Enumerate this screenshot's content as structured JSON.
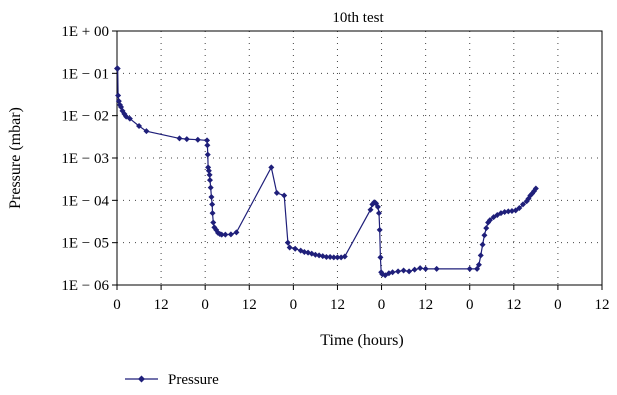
{
  "chart_data": {
    "type": "line",
    "title": "10th test",
    "xlabel": "Time (hours)",
    "ylabel": "Pressure (mbar)",
    "y_scale": "log",
    "ylim": [
      1e-06,
      1
    ],
    "xlim": [
      0,
      132
    ],
    "grid": "dotted",
    "legend_position": "bottom-left",
    "x_tick_values": [
      0,
      12,
      24,
      36,
      48,
      60,
      72,
      84,
      96,
      108,
      120,
      132
    ],
    "x_tick_labels": [
      "0",
      "12",
      "0",
      "12",
      "0",
      "12",
      "0",
      "12",
      "0",
      "12",
      "0",
      "12"
    ],
    "y_tick_values": [
      1,
      0.1,
      0.01,
      0.001,
      0.0001,
      1e-05,
      1e-06
    ],
    "y_tick_labels": [
      "1E + 00",
      "1E − 01",
      "1E − 02",
      "1E − 03",
      "1E − 04",
      "1E − 05",
      "1E − 06"
    ],
    "series": [
      {
        "name": "Pressure",
        "color": "#1f1f7a",
        "marker": "diamond",
        "points": [
          [
            0.0,
            0.13
          ],
          [
            0.2,
            0.13
          ],
          [
            0.3,
            0.03
          ],
          [
            0.5,
            0.022
          ],
          [
            0.8,
            0.018
          ],
          [
            1.1,
            0.016
          ],
          [
            1.5,
            0.013
          ],
          [
            2.0,
            0.011
          ],
          [
            2.5,
            0.0095
          ],
          [
            3.5,
            0.0085
          ],
          [
            6.0,
            0.0057
          ],
          [
            8.0,
            0.0043
          ],
          [
            17.0,
            0.0029
          ],
          [
            19.0,
            0.0028
          ],
          [
            22.0,
            0.0027
          ],
          [
            24.5,
            0.0026
          ],
          [
            24.6,
            0.002
          ],
          [
            24.7,
            0.0012
          ],
          [
            24.8,
            0.0006
          ],
          [
            25.0,
            0.0005
          ],
          [
            25.2,
            0.0004
          ],
          [
            25.3,
            0.0003
          ],
          [
            25.5,
            0.0002
          ],
          [
            25.7,
            0.00012
          ],
          [
            25.9,
            8e-05
          ],
          [
            26.0,
            5e-05
          ],
          [
            26.2,
            3e-05
          ],
          [
            26.5,
            2.3e-05
          ],
          [
            27.0,
            2e-05
          ],
          [
            27.5,
            1.7e-05
          ],
          [
            28.0,
            1.6e-05
          ],
          [
            28.5,
            1.55e-05
          ],
          [
            29.5,
            1.55e-05
          ],
          [
            31.0,
            1.57e-05
          ],
          [
            32.5,
            1.75e-05
          ],
          [
            42.0,
            0.0006
          ],
          [
            43.5,
            0.00015
          ],
          [
            45.5,
            0.00013
          ],
          [
            46.5,
            1e-05
          ],
          [
            47.0,
            7.7e-06
          ],
          [
            48.5,
            7.2e-06
          ],
          [
            50.0,
            6.5e-06
          ],
          [
            51.0,
            6e-06
          ],
          [
            52.0,
            5.8e-06
          ],
          [
            53.0,
            5.5e-06
          ],
          [
            54.0,
            5.2e-06
          ],
          [
            55.0,
            5e-06
          ],
          [
            56.0,
            4.8e-06
          ],
          [
            57.0,
            4.6e-06
          ],
          [
            58.0,
            4.6e-06
          ],
          [
            59.0,
            4.5e-06
          ],
          [
            60.0,
            4.5e-06
          ],
          [
            61.0,
            4.5e-06
          ],
          [
            62.0,
            4.7e-06
          ],
          [
            69.0,
            6e-05
          ],
          [
            69.5,
            8e-05
          ],
          [
            70.0,
            9e-05
          ],
          [
            70.5,
            8.5e-05
          ],
          [
            71.0,
            7e-05
          ],
          [
            71.3,
            5e-05
          ],
          [
            71.5,
            2e-05
          ],
          [
            71.7,
            4.5e-06
          ],
          [
            71.9,
            2e-06
          ],
          [
            72.2,
            1.8e-06
          ],
          [
            73.0,
            1.7e-06
          ],
          [
            74.0,
            1.9e-06
          ],
          [
            75.0,
            2e-06
          ],
          [
            76.5,
            2.1e-06
          ],
          [
            78.0,
            2.2e-06
          ],
          [
            79.5,
            2.1e-06
          ],
          [
            81.0,
            2.3e-06
          ],
          [
            82.5,
            2.5e-06
          ],
          [
            84.0,
            2.4e-06
          ],
          [
            87.0,
            2.4e-06
          ],
          [
            96.0,
            2.4e-06
          ],
          [
            98.0,
            2.4e-06
          ],
          [
            98.5,
            3e-06
          ],
          [
            99.0,
            5e-06
          ],
          [
            99.5,
            9e-06
          ],
          [
            100.0,
            1.5e-05
          ],
          [
            100.5,
            2.2e-05
          ],
          [
            101.0,
            3e-05
          ],
          [
            101.5,
            3.4e-05
          ],
          [
            102.5,
            4e-05
          ],
          [
            103.5,
            4.5e-05
          ],
          [
            104.5,
            5e-05
          ],
          [
            105.5,
            5.3e-05
          ],
          [
            106.5,
            5.5e-05
          ],
          [
            107.5,
            5.6e-05
          ],
          [
            108.5,
            5.8e-05
          ],
          [
            109.5,
            6.6e-05
          ],
          [
            110.5,
            8e-05
          ],
          [
            111.5,
            9.5e-05
          ],
          [
            112.0,
            0.00011
          ],
          [
            112.5,
            0.00013
          ],
          [
            113.0,
            0.000145
          ],
          [
            113.5,
            0.000165
          ],
          [
            114.0,
            0.00019
          ]
        ]
      }
    ]
  }
}
